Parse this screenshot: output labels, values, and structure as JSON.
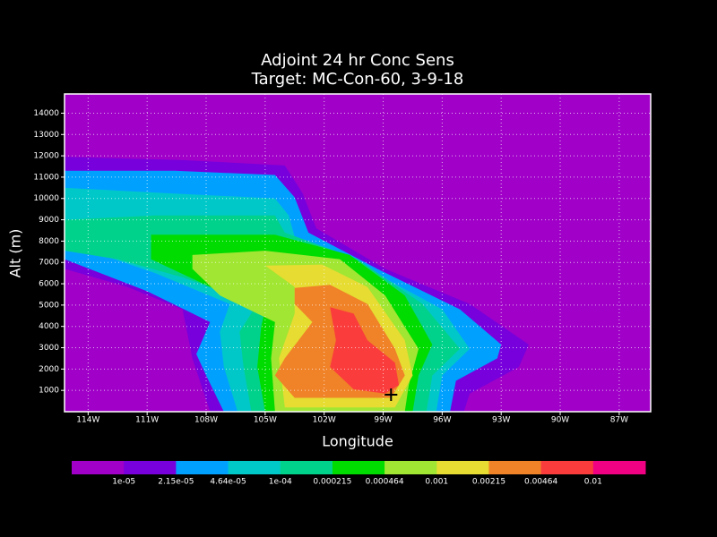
{
  "chart_data": {
    "type": "contour",
    "title": "Adjoint 24 hr Conc Sens",
    "subtitle": "Target: MC-Con-60, 3-9-18",
    "x_label": "Longitude",
    "y_label": "Alt (m)",
    "xlim": [
      -115.2,
      -85.4
    ],
    "ylim": [
      0,
      14900
    ],
    "xticks": [
      {
        "value": -114,
        "label": "114W"
      },
      {
        "value": -111,
        "label": "111W"
      },
      {
        "value": -108,
        "label": "108W"
      },
      {
        "value": -105,
        "label": "105W"
      },
      {
        "value": -102,
        "label": "102W"
      },
      {
        "value": -99,
        "label": "99W"
      },
      {
        "value": -96,
        "label": "96W"
      },
      {
        "value": -93,
        "label": "93W"
      },
      {
        "value": -90,
        "label": "90W"
      },
      {
        "value": -87,
        "label": "87W"
      }
    ],
    "yticks": [
      1000,
      2000,
      3000,
      4000,
      5000,
      6000,
      7000,
      8000,
      9000,
      10000,
      11000,
      12000,
      13000,
      14000
    ],
    "grid": true,
    "background_color": "#a000c8",
    "colorbar": {
      "colors": [
        "#a000c8",
        "#7800dc",
        "#00a0ff",
        "#00c8c8",
        "#00d28c",
        "#00dc00",
        "#a0e632",
        "#e6dc32",
        "#f08228",
        "#fa3c3c",
        "#f00082"
      ],
      "levels": [
        {
          "value": 1e-05,
          "label": "1e-05"
        },
        {
          "value": 2.15e-05,
          "label": "2.15e-05"
        },
        {
          "value": 4.64e-05,
          "label": "4.64e-05"
        },
        {
          "value": 0.0001,
          "label": "1e-04"
        },
        0.000215,
        0.000464,
        0.001,
        0.00215,
        0.00464,
        0.01
      ]
    },
    "contours": [
      {
        "color": "#7800dc",
        "x": [
          -115.2,
          -109.2,
          -104.0,
          -103.1,
          -102.4,
          -98.9,
          -94.6,
          -91.6,
          -92.1,
          -94.6,
          -94.9,
          -107.8,
          -108.7,
          -109.2,
          -112.0,
          -115.2
        ],
        "y": [
          11950,
          11800,
          11550,
          10250,
          8600,
          6700,
          5050,
          3150,
          2100,
          850,
          0,
          0,
          2500,
          4800,
          5850,
          6700
        ]
      },
      {
        "color": "#00a0ff",
        "x": [
          -115.2,
          -109.6,
          -104.5,
          -103.5,
          -102.8,
          -99.3,
          -95.1,
          -93.0,
          -93.2,
          -95.3,
          -95.6,
          -107.1,
          -108.0,
          -108.5,
          -107.8,
          -111.0,
          -115.2
        ],
        "y": [
          11300,
          11300,
          11100,
          10050,
          8400,
          6700,
          4800,
          3150,
          2500,
          1450,
          0,
          0,
          1700,
          2700,
          4200,
          5650,
          7150
        ]
      },
      {
        "color": "#00c8c8",
        "x": [
          -115.2,
          -110.1,
          -104.5,
          -103.8,
          -103.5,
          -99.8,
          -96.0,
          -94.6,
          -96.0,
          -96.3,
          -106.4,
          -107.1,
          -107.3,
          -106.8,
          -110.6,
          -115.2
        ],
        "y": [
          10500,
          10250,
          10000,
          9200,
          8200,
          6700,
          4800,
          2950,
          1700,
          0,
          0,
          2100,
          3750,
          5050,
          6500,
          7950
        ]
      },
      {
        "color": "#00d28c",
        "x": [
          -115.2,
          -110.6,
          -104.5,
          -104.0,
          -100.3,
          -97.0,
          -95.1,
          -96.5,
          -96.8,
          -105.7,
          -106.1,
          -106.3,
          -105.4,
          -109.2,
          -112.5,
          -115.2
        ],
        "y": [
          9000,
          9200,
          9200,
          8400,
          7150,
          5050,
          2950,
          1700,
          0,
          0,
          2100,
          3750,
          5050,
          6300,
          7150,
          7550
        ]
      },
      {
        "color": "#00dc00",
        "x": [
          -110.8,
          -104.5,
          -100.7,
          -97.9,
          -96.5,
          -97.2,
          -97.5,
          -105.0,
          -105.4,
          -105.2,
          -105.0,
          -107.8,
          -110.8
        ],
        "y": [
          8300,
          8300,
          7350,
          5450,
          3150,
          1700,
          0,
          0,
          2100,
          4000,
          4800,
          5850,
          7150
        ]
      },
      {
        "color": "#a0e632",
        "x": [
          -108.7,
          -105.0,
          -101.2,
          -98.9,
          -97.2,
          -97.7,
          -97.9,
          -104.5,
          -104.7,
          -104.5,
          -107.3,
          -108.7
        ],
        "y": [
          7350,
          7550,
          7150,
          5450,
          2950,
          1250,
          0,
          0,
          2500,
          4200,
          5450,
          6700
        ]
      },
      {
        "color": "#e6dc32",
        "x": [
          -105.0,
          -102.1,
          -99.8,
          -97.9,
          -97.5,
          -98.4,
          -104.0,
          -104.3,
          -103.5,
          -103.5
        ],
        "y": [
          6850,
          6900,
          5850,
          3350,
          1700,
          200,
          200,
          2500,
          4600,
          5850
        ]
      },
      {
        "color": "#f08228",
        "x": [
          -103.5,
          -101.7,
          -99.8,
          -98.4,
          -97.9,
          -98.6,
          -103.5,
          -104.5,
          -104.0,
          -102.6,
          -103.5
        ],
        "y": [
          5800,
          5950,
          5050,
          2950,
          1700,
          650,
          650,
          1700,
          2500,
          4200,
          5050
        ]
      },
      {
        "color": "#fa3c3c",
        "x": [
          -101.7,
          -100.5,
          -99.8,
          -98.4,
          -98.2,
          -98.9,
          -100.5,
          -101.7,
          -101.4
        ],
        "y": [
          4900,
          4600,
          3350,
          2300,
          1250,
          850,
          1050,
          2100,
          3350
        ]
      }
    ],
    "target": {
      "x": -98.6,
      "y": 800
    }
  }
}
